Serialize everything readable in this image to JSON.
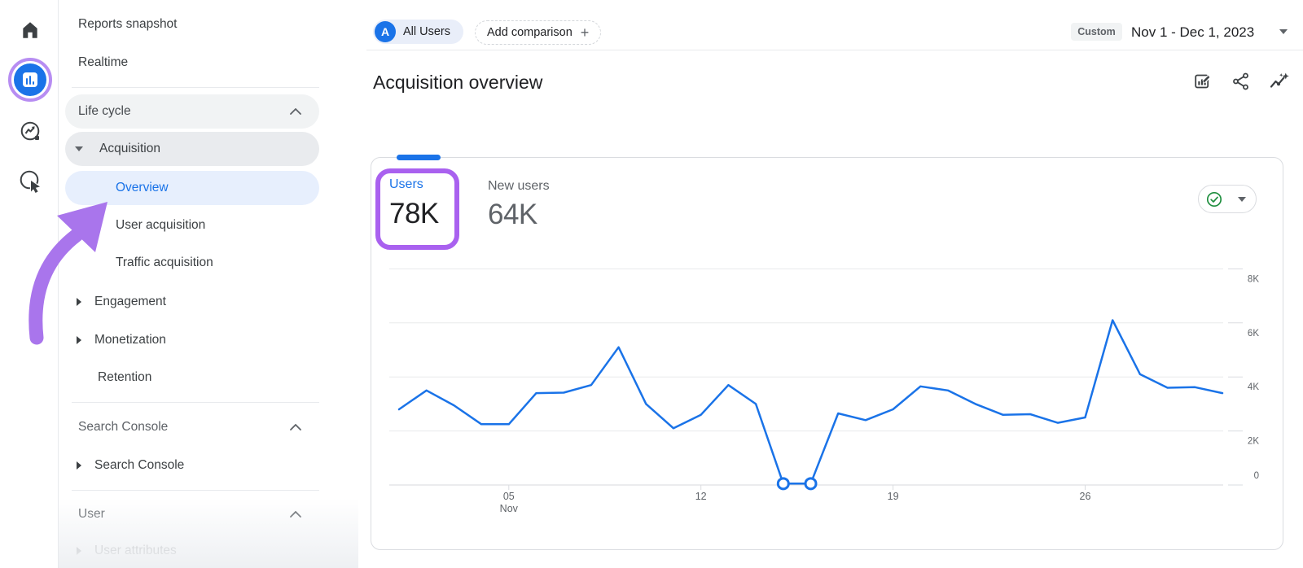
{
  "colors": {
    "accent_blue": "#1a73e8",
    "highlight_purple": "#a961ef",
    "annotation_purple": "#a975ec",
    "ring_purple": "#b78df2",
    "ok_green": "#1e8e3e",
    "text_dark": "#202124",
    "text_gray": "#5f6368",
    "selected_bg": "#e7effd",
    "pill_gray": "#f1f3f4",
    "border": "#dadce0"
  },
  "rail": {
    "icons": [
      "home",
      "reports",
      "explore",
      "advertising"
    ],
    "active_icon": "reports"
  },
  "sidebar": {
    "items": [
      {
        "label": "Reports snapshot"
      },
      {
        "label": "Realtime"
      },
      {
        "label": "Life cycle"
      },
      {
        "label": "Acquisition"
      },
      {
        "label": "Overview"
      },
      {
        "label": "User acquisition"
      },
      {
        "label": "Traffic acquisition"
      },
      {
        "label": "Engagement"
      },
      {
        "label": "Monetization"
      },
      {
        "label": "Retention"
      },
      {
        "label": "Search Console"
      },
      {
        "label": "Search Console"
      },
      {
        "label": "User"
      },
      {
        "label": "User attributes"
      }
    ],
    "selected": "Overview"
  },
  "header": {
    "avatar_letter": "A",
    "comparison_chip": "All Users",
    "add_comparison": "Add comparison",
    "plus_sign": "+",
    "date_label": "Custom",
    "date_range": "Nov 1 - Dec 1, 2023",
    "toolbar_icons": [
      "edit-report",
      "share",
      "insights"
    ]
  },
  "page": {
    "title": "Acquisition overview"
  },
  "card": {
    "metrics": [
      {
        "label": "Users",
        "value": "78K",
        "highlighted": true
      },
      {
        "label": "New users",
        "value": "64K",
        "highlighted": false
      }
    ],
    "quality_ok": true
  },
  "chart_data": {
    "type": "line",
    "metric": "Users",
    "x_range": [
      "Nov 1, 2023",
      "Dec 1, 2023"
    ],
    "x": [
      "Nov 1",
      "Nov 2",
      "Nov 3",
      "Nov 4",
      "Nov 5",
      "Nov 6",
      "Nov 7",
      "Nov 8",
      "Nov 9",
      "Nov 10",
      "Nov 11",
      "Nov 12",
      "Nov 13",
      "Nov 14",
      "Nov 15",
      "Nov 16",
      "Nov 17",
      "Nov 18",
      "Nov 19",
      "Nov 20",
      "Nov 21",
      "Nov 22",
      "Nov 23",
      "Nov 24",
      "Nov 25",
      "Nov 26",
      "Nov 27",
      "Nov 28",
      "Nov 29",
      "Nov 30",
      "Dec 1"
    ],
    "values": [
      2800,
      3500,
      2950,
      2250,
      2250,
      3400,
      3420,
      3700,
      5100,
      3000,
      2100,
      2600,
      3700,
      3000,
      50,
      50,
      2650,
      2400,
      2800,
      3650,
      3500,
      3000,
      2600,
      2620,
      2300,
      2500,
      6100,
      4100,
      3600,
      3620,
      3400
    ],
    "ylim": [
      0,
      8000
    ],
    "y_ticks": [
      0,
      2000,
      4000,
      6000,
      8000
    ],
    "y_tick_labels": [
      "0",
      "2K",
      "4K",
      "6K",
      "8K"
    ],
    "x_tick_positions": [
      4,
      11,
      18,
      25
    ],
    "x_tick_labels": [
      "05",
      "12",
      "19",
      "26"
    ],
    "x_tick_sublabels": [
      "Nov",
      "",
      "",
      ""
    ],
    "marker_indices": [
      14,
      15
    ],
    "line_color": "#1a73e8",
    "grid": true,
    "legend": "none"
  }
}
